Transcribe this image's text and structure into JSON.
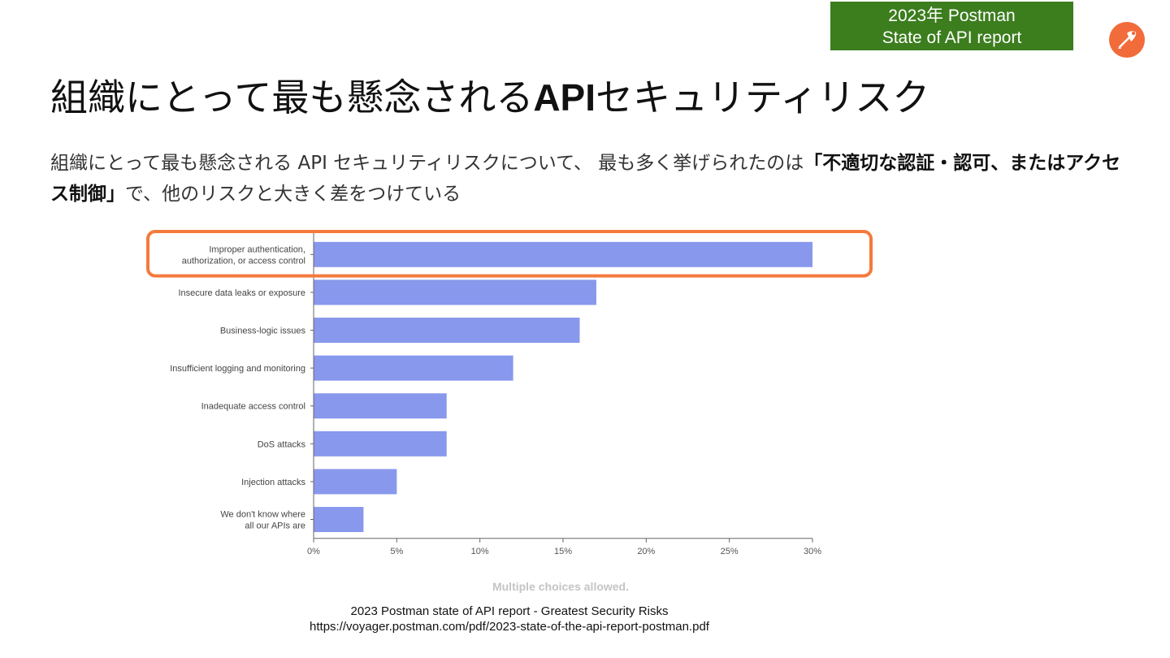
{
  "badge": {
    "line1": "2023年 Postman",
    "line2": "State of API report"
  },
  "logo": {
    "icon": "postman-logo-icon",
    "color": "#f26b3a"
  },
  "slide": {
    "title_pre": "組織にとって最も懸念される",
    "title_api": "API",
    "title_post": "セキュリティリスク",
    "desc_pre": "組織にとって最も懸念される API セキュリティリスクについて、 最も多く挙げられたのは",
    "desc_bold": "「不適切な認証・認可、またはアクセス制御」",
    "desc_post": "で、他のリスクと大きく差をつけている"
  },
  "chart_data": {
    "type": "bar",
    "orientation": "horizontal",
    "categories": [
      [
        "Improper authentication,",
        "authorization, or access control"
      ],
      [
        "Insecure data leaks or exposure"
      ],
      [
        "Business-logic issues"
      ],
      [
        "Insufficient logging and monitoring"
      ],
      [
        "Inadequate access control"
      ],
      [
        "DoS attacks"
      ],
      [
        "Injection attacks"
      ],
      [
        "We don't know where",
        "all our APIs are"
      ]
    ],
    "values": [
      30,
      17,
      16,
      12,
      8,
      8,
      5,
      3
    ],
    "xlim": [
      0,
      30
    ],
    "xticks": [
      0,
      5,
      10,
      15,
      20,
      25,
      30
    ],
    "tick_suffix": "%",
    "bar_color": "#8898ec",
    "highlight_index": 0,
    "highlight_color": "#f47a3c",
    "grid": false,
    "note": "Multiple choices allowed."
  },
  "source": {
    "line1": "2023 Postman state of API report - Greatest Security Risks",
    "line2": "https://voyager.postman.com/pdf/2023-state-of-the-api-report-postman.pdf"
  }
}
